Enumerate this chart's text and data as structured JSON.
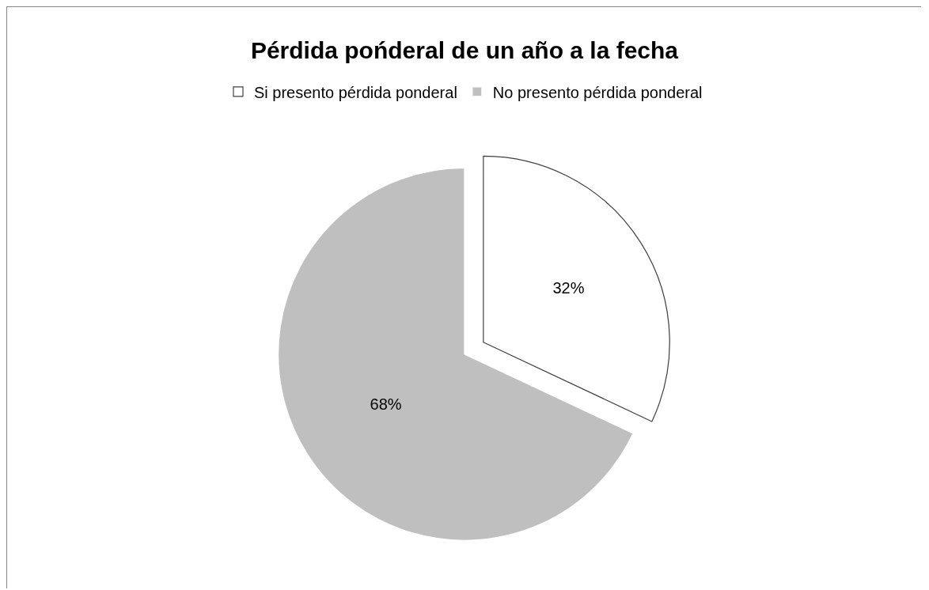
{
  "chart_data": {
    "type": "pie",
    "title": "Pérdida pońderal de un año a la fecha",
    "categories": [
      "Si presento pérdida ponderal",
      "No presento pérdida ponderal"
    ],
    "values": [
      32,
      68
    ],
    "value_labels": [
      "32%",
      "68%"
    ],
    "colors": [
      "#ffffff",
      "#bfbfbf"
    ],
    "legend": "top"
  }
}
